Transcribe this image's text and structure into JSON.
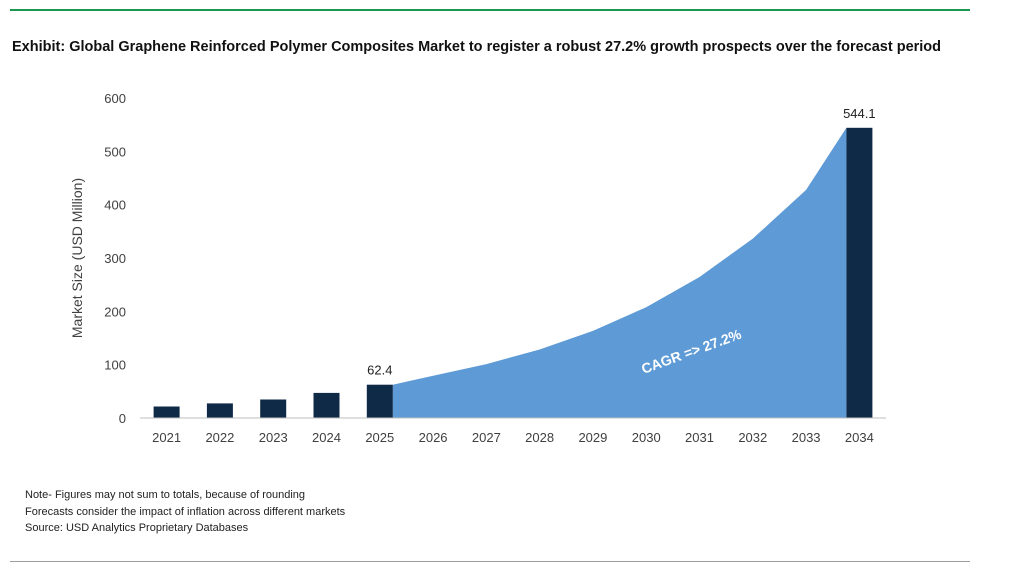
{
  "title": "Exhibit: Global Graphene Reinforced Polymer Composites Market to register a robust 27.2% growth prospects over the forecast period",
  "colors": {
    "bar": "#0f2a47",
    "area": "#5e9bd6",
    "accent_rule": "#1a9850",
    "axis_text": "#404040"
  },
  "chart_data": {
    "type": "bar",
    "categories": [
      "2021",
      "2022",
      "2023",
      "2024",
      "2025",
      "2026",
      "2027",
      "2028",
      "2029",
      "2030",
      "2031",
      "2032",
      "2033",
      "2034"
    ],
    "series": [
      {
        "values": [
          21.5,
          27.3,
          34.7,
          47.0,
          62.4,
          null,
          null,
          null,
          null,
          null,
          null,
          null,
          null,
          544.1
        ]
      }
    ],
    "area": {
      "values": [
        null,
        null,
        null,
        null,
        62.4,
        79.4,
        101.0,
        128.5,
        163.4,
        207.8,
        264.4,
        336.3,
        427.7,
        544.1
      ]
    },
    "data_labels": [
      {
        "category": "2025",
        "text": "62.4"
      },
      {
        "category": "2034",
        "text": "544.1"
      }
    ],
    "annotation": "CAGR => 27.2%",
    "ylabel": "Market Size (USD Million)",
    "xlabel": "",
    "ylim": [
      0,
      600
    ],
    "yticks": [
      0,
      100,
      200,
      300,
      400,
      500,
      600
    ],
    "grid": false
  },
  "notes": [
    "Note- Figures may not sum to totals, because of rounding",
    "Forecasts consider the impact of inflation across different markets",
    "Source: USD Analytics Proprietary Databases"
  ]
}
